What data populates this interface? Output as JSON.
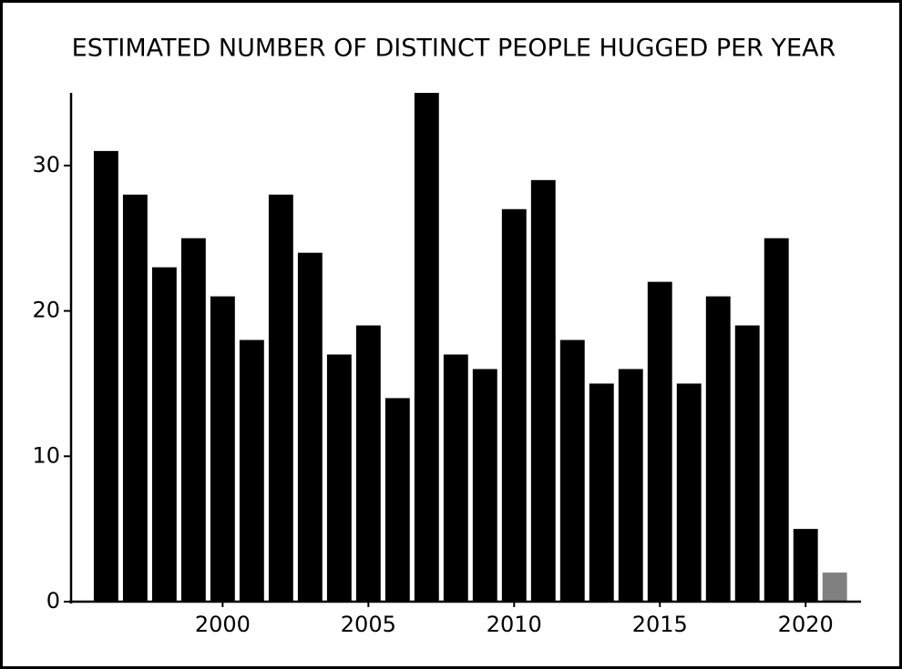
{
  "chart_data": {
    "type": "bar",
    "title": "ESTIMATED NUMBER OF DISTINCT PEOPLE HUGGED PER YEAR",
    "x": [
      1996,
      1997,
      1998,
      1999,
      2000,
      2001,
      2002,
      2003,
      2004,
      2005,
      2006,
      2007,
      2008,
      2009,
      2010,
      2011,
      2012,
      2013,
      2014,
      2015,
      2016,
      2017,
      2018,
      2019,
      2020,
      2021
    ],
    "values": [
      31,
      28,
      23,
      25,
      21,
      18,
      28,
      24,
      17,
      19,
      14,
      35,
      17,
      16,
      27,
      29,
      18,
      15,
      16,
      22,
      15,
      21,
      19,
      25,
      5,
      2
    ],
    "colors": [
      "#000000",
      "#000000",
      "#000000",
      "#000000",
      "#000000",
      "#000000",
      "#000000",
      "#000000",
      "#000000",
      "#000000",
      "#000000",
      "#000000",
      "#000000",
      "#000000",
      "#000000",
      "#000000",
      "#000000",
      "#000000",
      "#000000",
      "#000000",
      "#000000",
      "#000000",
      "#000000",
      "#000000",
      "#000000",
      "#808080"
    ],
    "xlim": [
      1994.8,
      2021.9
    ],
    "xticks": [
      2000,
      2005,
      2010,
      2015,
      2020
    ],
    "ylim": [
      0,
      35
    ],
    "yticks": [
      0,
      10,
      20,
      30
    ],
    "grid": false
  }
}
